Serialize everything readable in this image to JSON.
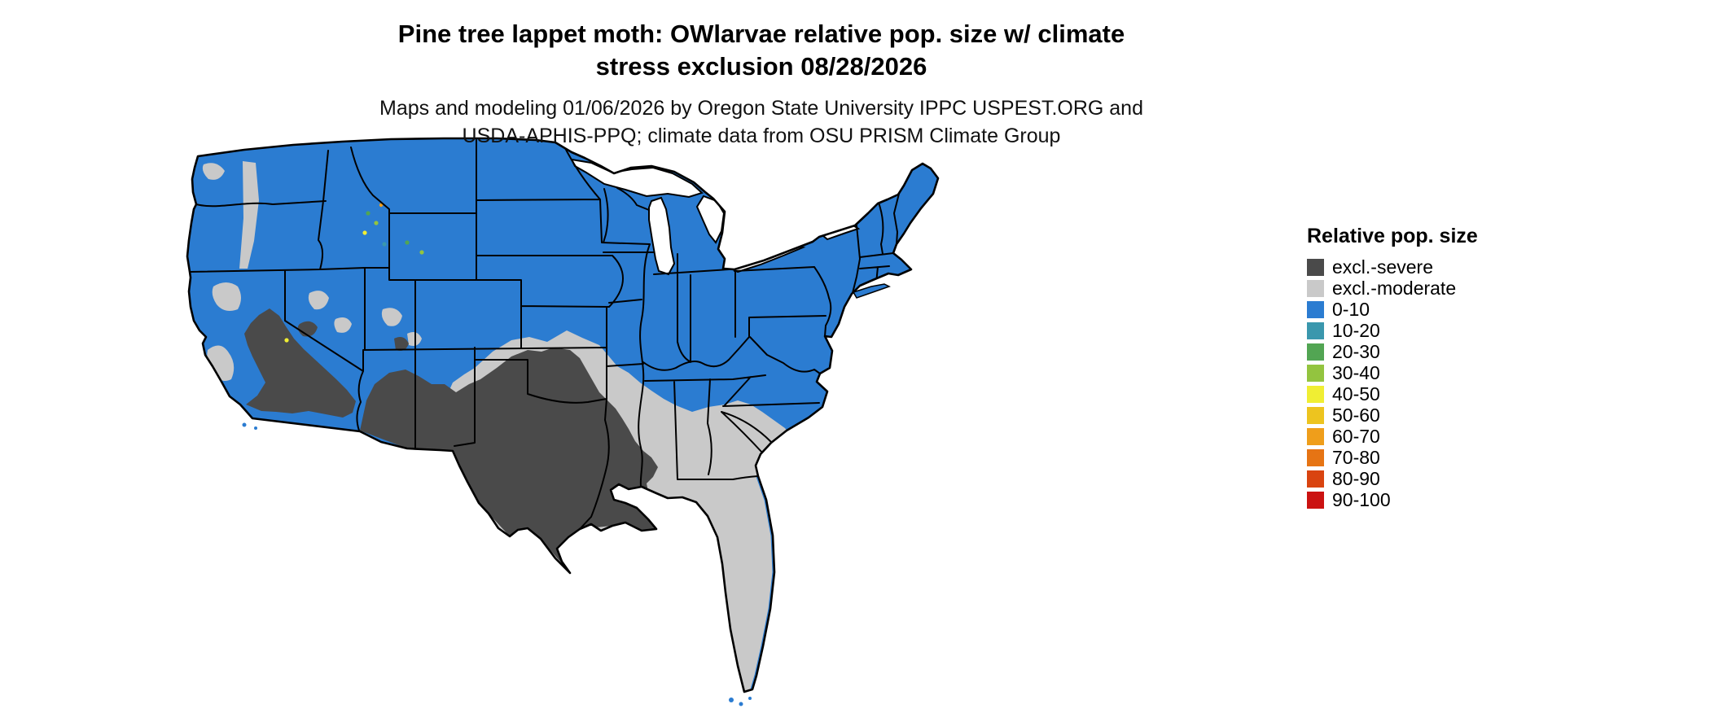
{
  "header": {
    "title_line1": "Pine tree lappet moth: OWlarvae relative pop. size w/ climate",
    "title_line2": "stress exclusion 08/28/2026",
    "subtitle_line1": "Maps and modeling 01/06/2026 by Oregon State University IPPC USPEST.ORG and",
    "subtitle_line2": "USDA-APHIS-PPQ; climate data from OSU PRISM Climate Group"
  },
  "legend": {
    "title": "Relative pop. size",
    "items": [
      {
        "label": "excl.-severe",
        "color": "#4a4a4a"
      },
      {
        "label": "excl.-moderate",
        "color": "#c9c9c9"
      },
      {
        "label": "0-10",
        "color": "#2b7cd1"
      },
      {
        "label": "10-20",
        "color": "#3a97ad"
      },
      {
        "label": "20-30",
        "color": "#52a553"
      },
      {
        "label": "30-40",
        "color": "#93c43f"
      },
      {
        "label": "40-50",
        "color": "#f0ee33"
      },
      {
        "label": "50-60",
        "color": "#edc41f"
      },
      {
        "label": "60-70",
        "color": "#ef9e1b"
      },
      {
        "label": "70-80",
        "color": "#e67414"
      },
      {
        "label": "80-90",
        "color": "#d94410"
      },
      {
        "label": "90-100",
        "color": "#cb1211"
      }
    ]
  },
  "colors": {
    "base_blue": "#2b7cd1",
    "excl_severe": "#4a4a4a",
    "excl_moderate": "#c9c9c9",
    "water": "#ffffff",
    "border": "#000000",
    "r10_20": "#3a97ad",
    "r20_30": "#52a553",
    "r30_40": "#93c43f",
    "r40_50": "#f0ee33",
    "r60_70": "#ef9e1b"
  }
}
